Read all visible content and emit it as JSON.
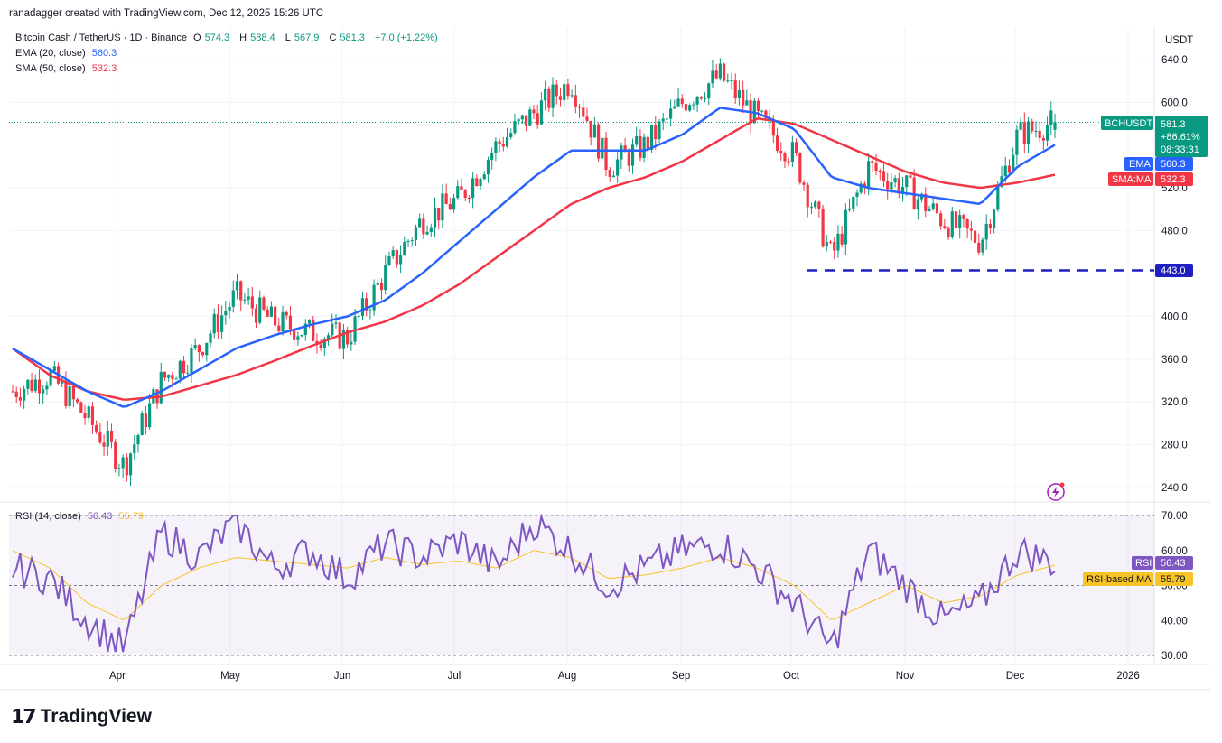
{
  "header": {
    "attribution": "ranadagger created with TradingView.com, Dec 12, 2025 15:26 UTC"
  },
  "legend": {
    "symbol": "Bitcoin Cash / TetherUS · 1D · Binance",
    "o_label": "O",
    "o": "574.3",
    "h_label": "H",
    "h": "588.4",
    "l_label": "L",
    "l": "567.9",
    "c_label": "C",
    "c": "581.3",
    "change": "+7.0 (+1.22%)",
    "ema_label": "EMA (20, close)",
    "ema_value": "560.3",
    "sma_label": "SMA (50, close)",
    "sma_value": "532.3",
    "rsi_label": "RSI (14, close)",
    "rsi_value": "56.43",
    "rsi_ma_value": "55.79"
  },
  "axis": {
    "currency": "USDT",
    "price_ticks": [
      "640.0",
      "600.0",
      "520.0",
      "480.0",
      "400.0",
      "360.0",
      "320.0",
      "280.0",
      "240.0"
    ],
    "rsi_ticks": [
      "70.00",
      "60.00",
      "50.00",
      "40.00",
      "30.00"
    ],
    "months": [
      "Apr",
      "May",
      "Jun",
      "Jul",
      "Aug",
      "Sep",
      "Oct",
      "Nov",
      "Dec",
      "2026"
    ]
  },
  "tags": {
    "symbol_tag": "BCHUSDT",
    "price": "581.3",
    "pct": "+86.61%",
    "countdown": "08:33:31",
    "ema_tag": "EMA",
    "ema_val": "560.3",
    "sma_tag": "SMA:MA",
    "sma_val": "532.3",
    "support_val": "443.0",
    "rsi_tag": "RSI",
    "rsi_val": "56.43",
    "rsi_ma_tag": "RSI-based MA",
    "rsi_ma_val": "55.79"
  },
  "footer": {
    "brand": "TradingView"
  },
  "colors": {
    "up": "#089981",
    "down": "#f23645",
    "ema": "#2962ff",
    "sma": "#f23645",
    "rsi": "#7e57c2",
    "rsi_ma": "#f7c325",
    "support": "#1f1fbf"
  },
  "chart_data": {
    "type": "candlestick",
    "price_ylim": [
      225,
      660
    ],
    "support_level": 443.0,
    "rsi_ylim": [
      30,
      70
    ],
    "dates": [
      "Mar 10",
      "Mar 20",
      "Apr 1",
      "Apr 8",
      "Apr 20",
      "May 1",
      "May 10",
      "May 20",
      "Jun 1",
      "Jun 10",
      "Jun 20",
      "Jul 1",
      "Jul 10",
      "Jul 20",
      "Aug 1",
      "Aug 10",
      "Aug 20",
      "Sep 1",
      "Sep 10",
      "Sep 20",
      "Oct 1",
      "Oct 10",
      "Oct 16",
      "Oct 25",
      "Nov 1",
      "Nov 10",
      "Nov 20",
      "Dec 1",
      "Dec 12"
    ],
    "close": [
      330,
      345,
      305,
      260,
      340,
      370,
      420,
      395,
      385,
      380,
      440,
      490,
      510,
      560,
      590,
      620,
      540,
      560,
      600,
      625,
      585,
      550,
      455,
      540,
      520,
      490,
      470,
      570,
      581.3
    ],
    "ema20": [
      370,
      350,
      330,
      315,
      330,
      350,
      370,
      382,
      392,
      400,
      415,
      440,
      470,
      500,
      530,
      555,
      555,
      555,
      570,
      595,
      590,
      575,
      530,
      520,
      515,
      510,
      505,
      540,
      560.3
    ],
    "sma50": [
      370,
      345,
      330,
      322,
      325,
      335,
      345,
      358,
      372,
      385,
      395,
      410,
      430,
      455,
      480,
      505,
      520,
      530,
      545,
      565,
      585,
      580,
      565,
      550,
      535,
      525,
      520,
      525,
      532.3
    ],
    "rsi": [
      55,
      52,
      40,
      32,
      65,
      58,
      68,
      55,
      60,
      52,
      62,
      58,
      63,
      55,
      68,
      60,
      50,
      55,
      60,
      62,
      55,
      45,
      32,
      60,
      50,
      40,
      45,
      60,
      56.43
    ],
    "rsi_ma": [
      60,
      55,
      45,
      40,
      50,
      55,
      58,
      57,
      56,
      55,
      58,
      56,
      57,
      55,
      60,
      58,
      52,
      53,
      55,
      58,
      55,
      50,
      40,
      45,
      50,
      45,
      47,
      53,
      55.79
    ]
  }
}
